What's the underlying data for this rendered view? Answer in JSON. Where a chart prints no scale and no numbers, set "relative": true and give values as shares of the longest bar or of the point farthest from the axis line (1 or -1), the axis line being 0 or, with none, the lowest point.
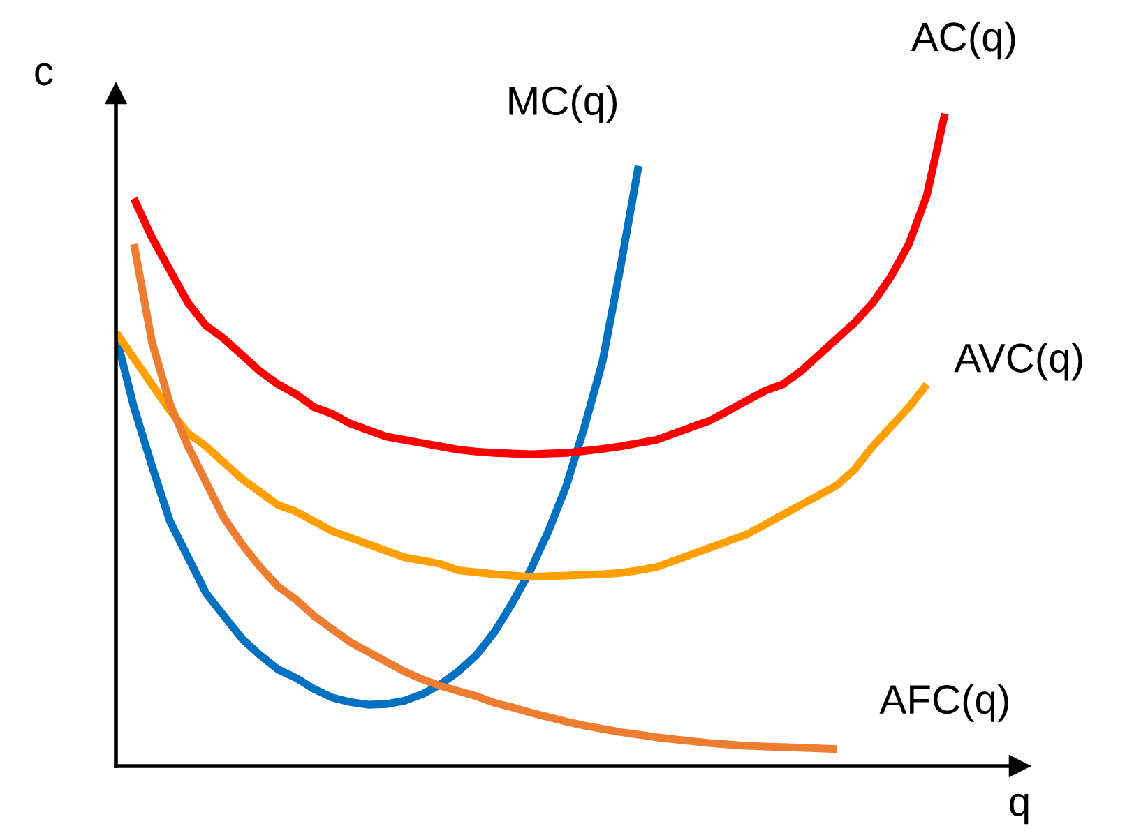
{
  "chart_data": {
    "type": "line",
    "relative": true,
    "xlabel": "q",
    "ylabel": "c",
    "legend": false,
    "marker": "none",
    "line_style": "solid",
    "categories": [
      null,
      null,
      null,
      null,
      null,
      null,
      null,
      null,
      null,
      null,
      null,
      null,
      null,
      null,
      null,
      null,
      null,
      null,
      null,
      null,
      null,
      null,
      null,
      null,
      null,
      null,
      null,
      null,
      null,
      null,
      null,
      null,
      null,
      null,
      null,
      null,
      null,
      null,
      null,
      null,
      null,
      null,
      null,
      null,
      null,
      null,
      null
    ],
    "series": [
      {
        "name": "MC(q)",
        "color": "#0070c0",
        "values": [
          0.66,
          0.55,
          0.46,
          0.375,
          0.32,
          0.265,
          0.23,
          0.195,
          0.17,
          0.148,
          0.135,
          0.118,
          0.105,
          0.098,
          0.094,
          0.095,
          0.1,
          0.11,
          0.125,
          0.145,
          0.17,
          0.205,
          0.25,
          0.3,
          0.36,
          0.43,
          0.52,
          0.62,
          0.765,
          0.92,
          null,
          null,
          null,
          null,
          null,
          null,
          null,
          null,
          null,
          null,
          null,
          null,
          null,
          null,
          null,
          null,
          null
        ]
      },
      {
        "name": "AC(q)",
        "color": "#ff0000",
        "values": [
          null,
          0.87,
          0.81,
          0.76,
          0.71,
          0.675,
          0.655,
          0.63,
          0.605,
          0.585,
          0.57,
          0.55,
          0.54,
          0.525,
          0.515,
          0.505,
          0.5,
          0.495,
          0.49,
          0.485,
          0.482,
          0.48,
          0.479,
          0.478,
          0.479,
          0.48,
          0.483,
          0.486,
          0.49,
          0.495,
          0.5,
          0.51,
          0.52,
          0.53,
          0.545,
          0.56,
          0.575,
          0.585,
          0.605,
          0.63,
          0.655,
          0.68,
          0.71,
          0.75,
          0.8,
          0.875,
          1.0
        ]
      },
      {
        "name": "AVC(q)",
        "color": "#ffa000",
        "values": [
          0.665,
          0.625,
          0.585,
          0.545,
          0.51,
          0.49,
          0.465,
          0.44,
          0.42,
          0.4,
          0.39,
          0.375,
          0.36,
          0.35,
          0.34,
          0.33,
          0.32,
          0.315,
          0.31,
          0.3,
          0.297,
          0.294,
          0.292,
          0.29,
          0.291,
          0.292,
          0.293,
          0.294,
          0.296,
          0.3,
          0.305,
          0.315,
          0.325,
          0.335,
          0.345,
          0.355,
          0.37,
          0.385,
          0.4,
          0.415,
          0.43,
          0.455,
          0.49,
          0.52,
          0.55,
          0.585,
          null
        ]
      },
      {
        "name": "AFC(q)",
        "color": "#ed7d31",
        "values": [
          null,
          0.8,
          0.65,
          0.555,
          0.49,
          0.435,
          0.38,
          0.34,
          0.305,
          0.275,
          0.255,
          0.23,
          0.21,
          0.19,
          0.175,
          0.16,
          0.145,
          0.133,
          0.123,
          0.115,
          0.107,
          0.097,
          0.09,
          0.082,
          0.075,
          0.068,
          0.062,
          0.057,
          0.052,
          0.048,
          0.044,
          0.041,
          0.038,
          0.035,
          0.033,
          0.031,
          0.03,
          0.029,
          0.028,
          0.027,
          0.026,
          null,
          null,
          null,
          null,
          null,
          null
        ]
      }
    ]
  }
}
